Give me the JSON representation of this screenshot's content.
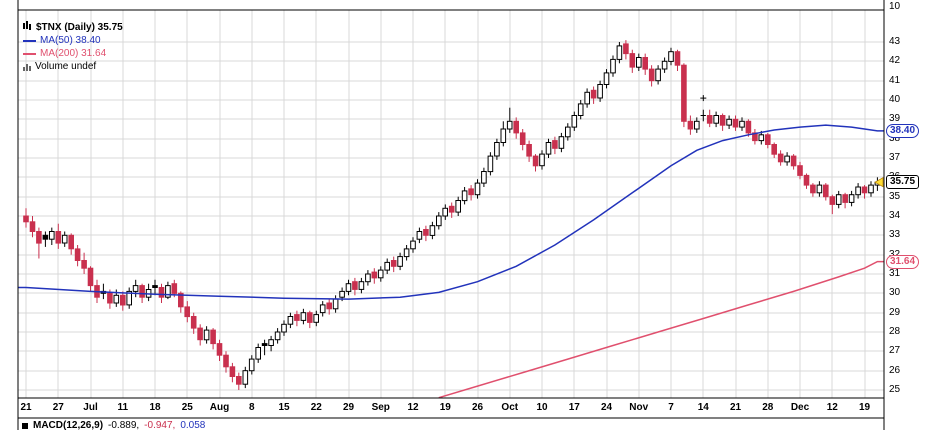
{
  "upper_pane": {
    "tick_label": "10"
  },
  "legend": {
    "title": "$TNX (Daily) 35.75",
    "ma50": "MA(50) 38.40",
    "ma200": "MA(200) 31.64",
    "volume": "Volume undef"
  },
  "footer": {
    "macd_label": "MACD(12,26,9)",
    "macd_value": "-0.889,",
    "signal_value": "-0.947,",
    "hist_value": "0.058"
  },
  "colors": {
    "up": "#000000",
    "down": "#c9304e",
    "ma50": "#2233bb",
    "ma200": "#e0506e",
    "grid": "#d9d9d9",
    "last_marker": "#ffdd33"
  },
  "chart_data": {
    "type": "candlestick",
    "title": "$TNX (Daily)",
    "symbol": "$TNX",
    "timeframe": "Daily",
    "last_price": 35.75,
    "y_axis_range": [
      24.6,
      44.4
    ],
    "y_ticks": [
      43,
      42,
      41,
      40,
      39,
      38,
      37,
      36,
      35,
      34,
      33,
      32,
      31,
      30,
      29,
      28,
      27,
      26,
      25
    ],
    "x_labels": [
      {
        "text": "21",
        "month": false
      },
      {
        "text": "27",
        "month": false
      },
      {
        "text": "Jul",
        "month": true
      },
      {
        "text": "11",
        "month": false
      },
      {
        "text": "18",
        "month": false
      },
      {
        "text": "25",
        "month": false
      },
      {
        "text": "Aug",
        "month": true
      },
      {
        "text": "8",
        "month": false
      },
      {
        "text": "15",
        "month": false
      },
      {
        "text": "22",
        "month": false
      },
      {
        "text": "29",
        "month": false
      },
      {
        "text": "Sep",
        "month": true
      },
      {
        "text": "12",
        "month": false
      },
      {
        "text": "19",
        "month": false
      },
      {
        "text": "26",
        "month": false
      },
      {
        "text": "Oct",
        "month": true
      },
      {
        "text": "10",
        "month": false
      },
      {
        "text": "17",
        "month": false
      },
      {
        "text": "24",
        "month": false
      },
      {
        "text": "Nov",
        "month": true
      },
      {
        "text": "7",
        "month": false
      },
      {
        "text": "14",
        "month": false
      },
      {
        "text": "21",
        "month": false
      },
      {
        "text": "28",
        "month": false
      },
      {
        "text": "Dec",
        "month": true
      },
      {
        "text": "12",
        "month": false
      },
      {
        "text": "19",
        "month": false
      }
    ],
    "callouts": {
      "ma50": "38.40",
      "last": "35.75",
      "ma200": "31.64"
    },
    "candles": [
      [
        34.0,
        34.4,
        33.4,
        33.7
      ],
      [
        33.7,
        34.0,
        32.9,
        33.2
      ],
      [
        33.2,
        33.4,
        31.8,
        32.6
      ],
      [
        33.0,
        33.2,
        32.4,
        32.8
      ],
      [
        32.8,
        33.4,
        32.5,
        33.2
      ],
      [
        33.2,
        33.6,
        32.3,
        32.6
      ],
      [
        32.6,
        33.2,
        32.4,
        33.0
      ],
      [
        33.0,
        33.1,
        32.0,
        32.3
      ],
      [
        32.3,
        32.5,
        31.4,
        31.7
      ],
      [
        31.7,
        32.1,
        31.0,
        31.3
      ],
      [
        31.3,
        31.4,
        30.1,
        30.4
      ],
      [
        30.4,
        30.7,
        29.5,
        29.8
      ],
      [
        30.1,
        30.5,
        29.7,
        30.0
      ],
      [
        30.0,
        30.2,
        29.2,
        29.5
      ],
      [
        29.5,
        30.2,
        29.3,
        29.9
      ],
      [
        29.9,
        30.1,
        29.1,
        29.4
      ],
      [
        29.4,
        30.3,
        29.2,
        30.1
      ],
      [
        30.1,
        30.7,
        29.8,
        30.4
      ],
      [
        30.4,
        30.5,
        29.5,
        29.8
      ],
      [
        29.8,
        30.5,
        29.6,
        30.2
      ],
      [
        30.4,
        30.7,
        29.9,
        30.3
      ],
      [
        30.3,
        30.5,
        29.5,
        29.8
      ],
      [
        29.8,
        30.6,
        29.7,
        30.4
      ],
      [
        30.5,
        30.7,
        29.8,
        30.0
      ],
      [
        30.0,
        30.1,
        29.0,
        29.3
      ],
      [
        29.3,
        29.6,
        28.5,
        28.8
      ],
      [
        28.8,
        29.0,
        27.9,
        28.2
      ],
      [
        28.2,
        28.4,
        27.3,
        27.6
      ],
      [
        27.6,
        28.3,
        27.4,
        28.1
      ],
      [
        28.1,
        28.2,
        27.1,
        27.4
      ],
      [
        27.4,
        27.6,
        26.5,
        26.8
      ],
      [
        26.8,
        27.0,
        25.9,
        26.2
      ],
      [
        26.2,
        26.4,
        25.4,
        25.7
      ],
      [
        25.7,
        25.9,
        25.0,
        25.3
      ],
      [
        25.3,
        26.2,
        25.1,
        26.0
      ],
      [
        26.0,
        26.8,
        25.8,
        26.6
      ],
      [
        26.6,
        27.4,
        26.4,
        27.2
      ],
      [
        27.4,
        27.6,
        26.8,
        27.3
      ],
      [
        27.3,
        27.8,
        27.0,
        27.6
      ],
      [
        27.6,
        28.2,
        27.4,
        28.0
      ],
      [
        28.0,
        28.6,
        27.8,
        28.4
      ],
      [
        28.4,
        29.0,
        28.2,
        28.8
      ],
      [
        28.9,
        29.1,
        28.3,
        28.6
      ],
      [
        28.6,
        29.2,
        28.4,
        29.0
      ],
      [
        29.0,
        29.1,
        28.2,
        28.5
      ],
      [
        28.5,
        29.1,
        28.3,
        28.9
      ],
      [
        29.0,
        29.6,
        28.8,
        29.4
      ],
      [
        29.5,
        29.7,
        28.9,
        29.2
      ],
      [
        29.2,
        29.9,
        29.0,
        29.7
      ],
      [
        29.8,
        30.3,
        29.6,
        30.1
      ],
      [
        30.1,
        30.7,
        29.9,
        30.5
      ],
      [
        30.6,
        30.8,
        29.9,
        30.2
      ],
      [
        30.2,
        30.8,
        30.0,
        30.6
      ],
      [
        30.6,
        31.2,
        30.4,
        31.0
      ],
      [
        31.1,
        31.3,
        30.5,
        30.8
      ],
      [
        30.8,
        31.4,
        30.6,
        31.2
      ],
      [
        31.2,
        31.8,
        31.0,
        31.6
      ],
      [
        31.7,
        31.9,
        31.1,
        31.4
      ],
      [
        31.4,
        32.1,
        31.2,
        31.9
      ],
      [
        31.9,
        32.5,
        31.7,
        32.3
      ],
      [
        32.3,
        32.9,
        32.1,
        32.7
      ],
      [
        32.8,
        33.4,
        32.6,
        33.2
      ],
      [
        33.3,
        33.5,
        32.7,
        33.0
      ],
      [
        33.0,
        33.7,
        32.8,
        33.5
      ],
      [
        33.5,
        34.2,
        33.3,
        34.0
      ],
      [
        34.0,
        34.6,
        33.8,
        34.4
      ],
      [
        34.5,
        34.7,
        33.9,
        34.2
      ],
      [
        34.2,
        35.0,
        34.0,
        34.8
      ],
      [
        34.8,
        35.5,
        34.6,
        35.3
      ],
      [
        35.4,
        35.6,
        34.8,
        35.1
      ],
      [
        35.1,
        35.9,
        34.9,
        35.7
      ],
      [
        35.7,
        36.5,
        35.5,
        36.3
      ],
      [
        36.3,
        37.3,
        36.1,
        37.1
      ],
      [
        37.1,
        38.0,
        36.9,
        37.8
      ],
      [
        37.8,
        38.9,
        37.6,
        38.5
      ],
      [
        38.5,
        39.6,
        38.3,
        38.9
      ],
      [
        38.9,
        39.1,
        38.0,
        38.3
      ],
      [
        38.3,
        38.5,
        37.4,
        37.7
      ],
      [
        37.7,
        37.9,
        36.8,
        37.1
      ],
      [
        37.1,
        37.2,
        36.3,
        36.6
      ],
      [
        36.6,
        37.4,
        36.4,
        37.2
      ],
      [
        37.2,
        38.0,
        37.0,
        37.8
      ],
      [
        37.9,
        38.1,
        37.2,
        37.5
      ],
      [
        37.5,
        38.3,
        37.3,
        38.1
      ],
      [
        38.1,
        38.8,
        37.9,
        38.6
      ],
      [
        38.6,
        39.4,
        38.4,
        39.2
      ],
      [
        39.2,
        40.0,
        39.0,
        39.8
      ],
      [
        39.8,
        40.6,
        39.6,
        40.4
      ],
      [
        40.5,
        40.7,
        39.8,
        40.1
      ],
      [
        40.1,
        41.0,
        39.9,
        40.8
      ],
      [
        40.8,
        41.6,
        40.6,
        41.4
      ],
      [
        41.4,
        42.3,
        41.2,
        42.1
      ],
      [
        42.1,
        43.0,
        41.9,
        42.8
      ],
      [
        42.9,
        43.1,
        42.1,
        42.4
      ],
      [
        42.4,
        42.6,
        41.4,
        41.7
      ],
      [
        41.7,
        42.4,
        41.5,
        42.2
      ],
      [
        42.2,
        42.4,
        41.3,
        41.6
      ],
      [
        41.6,
        41.8,
        40.7,
        41.0
      ],
      [
        41.0,
        41.8,
        40.8,
        41.6
      ],
      [
        41.6,
        42.2,
        41.4,
        42.0
      ],
      [
        42.0,
        42.7,
        41.8,
        42.5
      ],
      [
        42.5,
        42.6,
        41.5,
        41.8
      ],
      [
        41.8,
        41.9,
        38.6,
        38.9
      ],
      [
        38.9,
        39.2,
        38.2,
        38.5
      ],
      [
        38.5,
        39.1,
        38.3,
        38.9
      ],
      [
        39.2,
        39.5,
        38.9,
        39.2
      ],
      [
        39.2,
        39.5,
        38.6,
        38.8
      ],
      [
        38.8,
        39.4,
        38.6,
        39.2
      ],
      [
        39.2,
        39.3,
        38.4,
        38.7
      ],
      [
        38.7,
        39.2,
        38.5,
        39.0
      ],
      [
        39.0,
        39.2,
        38.4,
        38.6
      ],
      [
        38.6,
        39.1,
        38.4,
        38.9
      ],
      [
        38.9,
        39.0,
        38.1,
        38.3
      ],
      [
        38.3,
        38.5,
        37.7,
        37.9
      ],
      [
        37.9,
        38.4,
        37.7,
        38.2
      ],
      [
        38.2,
        38.3,
        37.5,
        37.7
      ],
      [
        37.7,
        37.8,
        37.0,
        37.2
      ],
      [
        37.2,
        37.4,
        36.6,
        36.8
      ],
      [
        36.8,
        37.3,
        36.6,
        37.1
      ],
      [
        37.1,
        37.2,
        36.4,
        36.6
      ],
      [
        36.6,
        36.8,
        35.9,
        36.1
      ],
      [
        36.1,
        36.2,
        35.4,
        35.6
      ],
      [
        35.6,
        35.7,
        35.0,
        35.2
      ],
      [
        35.2,
        35.8,
        35.0,
        35.6
      ],
      [
        35.6,
        35.7,
        34.8,
        35.0
      ],
      [
        35.0,
        35.1,
        34.1,
        34.6
      ],
      [
        34.6,
        35.3,
        34.4,
        35.1
      ],
      [
        35.1,
        35.2,
        34.4,
        34.7
      ],
      [
        34.7,
        35.3,
        34.5,
        35.1
      ],
      [
        35.1,
        35.7,
        34.9,
        35.5
      ],
      [
        35.5,
        35.6,
        34.9,
        35.2
      ],
      [
        35.2,
        35.8,
        35.0,
        35.6
      ],
      [
        35.6,
        36.0,
        35.3,
        35.75
      ]
    ],
    "ma50_points": [
      [
        0,
        30.3
      ],
      [
        10,
        30.1
      ],
      [
        20,
        29.95
      ],
      [
        30,
        29.85
      ],
      [
        40,
        29.75
      ],
      [
        50,
        29.7
      ],
      [
        58,
        29.8
      ],
      [
        64,
        30.05
      ],
      [
        70,
        30.6
      ],
      [
        76,
        31.4
      ],
      [
        82,
        32.5
      ],
      [
        88,
        33.8
      ],
      [
        94,
        35.2
      ],
      [
        100,
        36.6
      ],
      [
        104,
        37.4
      ],
      [
        108,
        37.9
      ],
      [
        112,
        38.2
      ],
      [
        116,
        38.45
      ],
      [
        120,
        38.6
      ],
      [
        124,
        38.7
      ],
      [
        128,
        38.6
      ],
      [
        132,
        38.4
      ]
    ],
    "ma200_points": [
      [
        64,
        24.6
      ],
      [
        70,
        25.2
      ],
      [
        77,
        25.9
      ],
      [
        84,
        26.6
      ],
      [
        91,
        27.3
      ],
      [
        98,
        28.0
      ],
      [
        105,
        28.7
      ],
      [
        112,
        29.4
      ],
      [
        119,
        30.1
      ],
      [
        126,
        30.85
      ],
      [
        130,
        31.3
      ],
      [
        132,
        31.64
      ]
    ],
    "annotations": {
      "plus_day": 105,
      "plus_price": 40.1
    }
  }
}
